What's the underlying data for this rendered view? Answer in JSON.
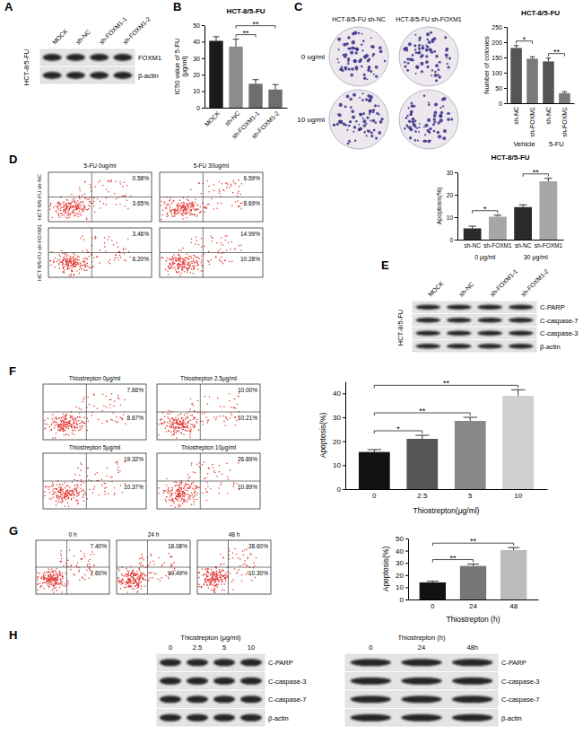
{
  "chart_data": [
    {
      "type": "bar",
      "panel": "B",
      "title": "HCT-8/5-FU",
      "y_label": [
        "IC50 value of 5-FU",
        "(μg/ml)"
      ],
      "categories": [
        "MOCK",
        "sh-NC",
        "sh-FOXM1-1",
        "sh-FOXM1-2"
      ],
      "values": [
        40.5,
        37,
        14.5,
        11
      ],
      "errors": [
        2.5,
        4.5,
        2.5,
        3
      ],
      "colors": [
        "#1a1a1a",
        "#8c8c8c",
        "#6e6e6e",
        "#6e6e6e"
      ],
      "ylim": [
        0,
        50
      ],
      "yticks": [
        0,
        10,
        20,
        30,
        40,
        50
      ],
      "annotations": [
        {
          "text": "**",
          "from": 1,
          "to": 2
        },
        {
          "text": "**",
          "from": 1,
          "to": 3
        }
      ]
    },
    {
      "type": "bar",
      "title": "HCT-8/5-FU",
      "y_label": "Number of colonies",
      "categories": [
        "sh-NC",
        "sh-FOXM1",
        "sh-NC",
        "sh-FOXM1"
      ],
      "group_labels": [
        "Vehicle",
        "5-FU"
      ],
      "values": [
        181,
        146,
        137,
        33
      ],
      "errors": [
        8,
        6,
        11,
        5
      ],
      "colors": [
        "#555555",
        "#7a7a7a",
        "#555555",
        "#7a7a7a"
      ],
      "ylim": [
        0,
        250
      ],
      "yticks": [
        0,
        50,
        100,
        150,
        200,
        250
      ],
      "annotations": [
        {
          "text": "*",
          "from": 0,
          "to": 1
        },
        {
          "text": "**",
          "from": 2,
          "to": 3
        }
      ]
    },
    {
      "type": "bar",
      "title": "HCT-8/5-FU",
      "y_label": "Apoptosis(%)",
      "categories": [
        "sh-NC",
        "sh-FOXM1",
        "sh-NC",
        "sh-FOXM1"
      ],
      "group_labels": [
        "0 μg/ml",
        "30 μg/ml"
      ],
      "values": [
        5,
        10.2,
        14.5,
        26
      ],
      "errors": [
        1,
        0.7,
        1,
        1.3
      ],
      "colors": [
        "#2b2b2b",
        "#a6a6a6",
        "#2b2b2b",
        "#a6a6a6"
      ],
      "ylim": [
        0,
        30
      ],
      "yticks": [
        0,
        10,
        20,
        30
      ],
      "annotations": [
        {
          "text": "*",
          "from": 0,
          "to": 1
        },
        {
          "text": "**",
          "from": 2,
          "to": 3
        }
      ]
    },
    {
      "type": "bar",
      "y_label": "Apoptosis(%)",
      "x_label": "Thiostrepton(μg/ml)",
      "categories": [
        "0",
        "2.5",
        "5",
        "10"
      ],
      "values": [
        15.5,
        21,
        28.5,
        39
      ],
      "errors": [
        1,
        1.5,
        1.5,
        2.5
      ],
      "colors": [
        "#111111",
        "#555555",
        "#888888",
        "#d0d0d0"
      ],
      "ylim": [
        0,
        45
      ],
      "yticks": [
        0,
        10,
        20,
        30,
        40
      ],
      "annotations": [
        {
          "text": "*",
          "from": 0,
          "to": 1
        },
        {
          "text": "**",
          "from": 0,
          "to": 2
        },
        {
          "text": "**",
          "from": 0,
          "to": 3
        }
      ]
    },
    {
      "type": "bar",
      "y_label": "Apoptosis(%)",
      "x_label": "Thiostrepton (h)",
      "categories": [
        "0",
        "24",
        "48"
      ],
      "values": [
        14,
        27.5,
        40.5
      ],
      "errors": [
        1,
        1.5,
        2
      ],
      "colors": [
        "#111111",
        "#777777",
        "#bbbbbb"
      ],
      "ylim": [
        0,
        50
      ],
      "yticks": [
        0,
        10,
        20,
        30,
        40,
        50
      ],
      "annotations": [
        {
          "text": "**",
          "from": 0,
          "to": 1
        },
        {
          "text": "**",
          "from": 0,
          "to": 2
        }
      ]
    }
  ],
  "colonies": {
    "panel": "C",
    "columns": [
      "HCT-8/5-FU sh-NC",
      "HCT-8/5-FU sh-FOXM1"
    ],
    "rows": [
      "0 ug/ml",
      "10 ug/ml"
    ]
  },
  "flow_panels": [
    {
      "panel": "D",
      "row_labels": [
        "HCT-8/5-FU sh-NC",
        "HCT-8/5-FU sh-FOXM1"
      ],
      "column_labels": [
        "5-FU 0ug/ml",
        "5-FU 30ug/ml"
      ],
      "plots": [
        {
          "upper": "0.58%",
          "lower": "3.65%"
        },
        {
          "upper": "6.59%",
          "lower": "8.69%"
        },
        {
          "upper": "3.46%",
          "lower": "6.20%"
        },
        {
          "upper": "14.99%",
          "lower": "10.28%"
        }
      ]
    },
    {
      "panel": "F",
      "plots": [
        {
          "title": "Thiostrepton 0μg/ml",
          "upper": "7.66%",
          "lower": "8.67%"
        },
        {
          "title": "Thiostrepton 2.5μg/ml",
          "upper": "10.00%",
          "lower": "10.21%"
        },
        {
          "title": "Thiostrepton 5μg/ml",
          "upper": "19.32%",
          "lower": "10.37%"
        },
        {
          "title": "Thiostrepton 10μg/ml",
          "upper": "26.89%",
          "lower": "10.89%"
        }
      ]
    },
    {
      "panel": "G",
      "plots": [
        {
          "title": "0 h",
          "upper": "7.40%",
          "lower": "7.60%"
        },
        {
          "title": "24 h",
          "upper": "18.08%",
          "lower": "10.49%"
        },
        {
          "title": "48 h",
          "upper": "28.60%",
          "lower": "10.30%"
        }
      ]
    }
  ],
  "blots": [
    {
      "panel": "A",
      "sample": "HCT-8/5-FU",
      "lanes": [
        "MOCK",
        "sh-NC",
        "sh-FOXM1-1",
        "sh-FOXM1-2"
      ],
      "rows": [
        "FOXM1",
        "β-actin"
      ]
    },
    {
      "panel": "E",
      "sample": "HCT-8/5-FU",
      "lanes": [
        "MOCK",
        "sh-NC",
        "sh-FOXM1-1",
        "sh-FOXM1-2"
      ],
      "rows": [
        "C-PARP",
        "C-caspase-7",
        "C-caspase-3",
        "β-actin"
      ]
    },
    {
      "panel": "H",
      "title": "Thiostrepton (μg/ml)",
      "lanes": [
        "0",
        "2.5",
        "5",
        "10"
      ],
      "rows": [
        "C-PARP",
        "C-caspase-3",
        "C-caspase-7",
        "β-actin"
      ]
    },
    {
      "title": "Thiostrepton (h)",
      "lanes": [
        "0",
        "24",
        "48h"
      ],
      "rows": [
        "C-PARP",
        "C-caspase-3",
        "C-caspase-7",
        "β-actin"
      ]
    }
  ]
}
